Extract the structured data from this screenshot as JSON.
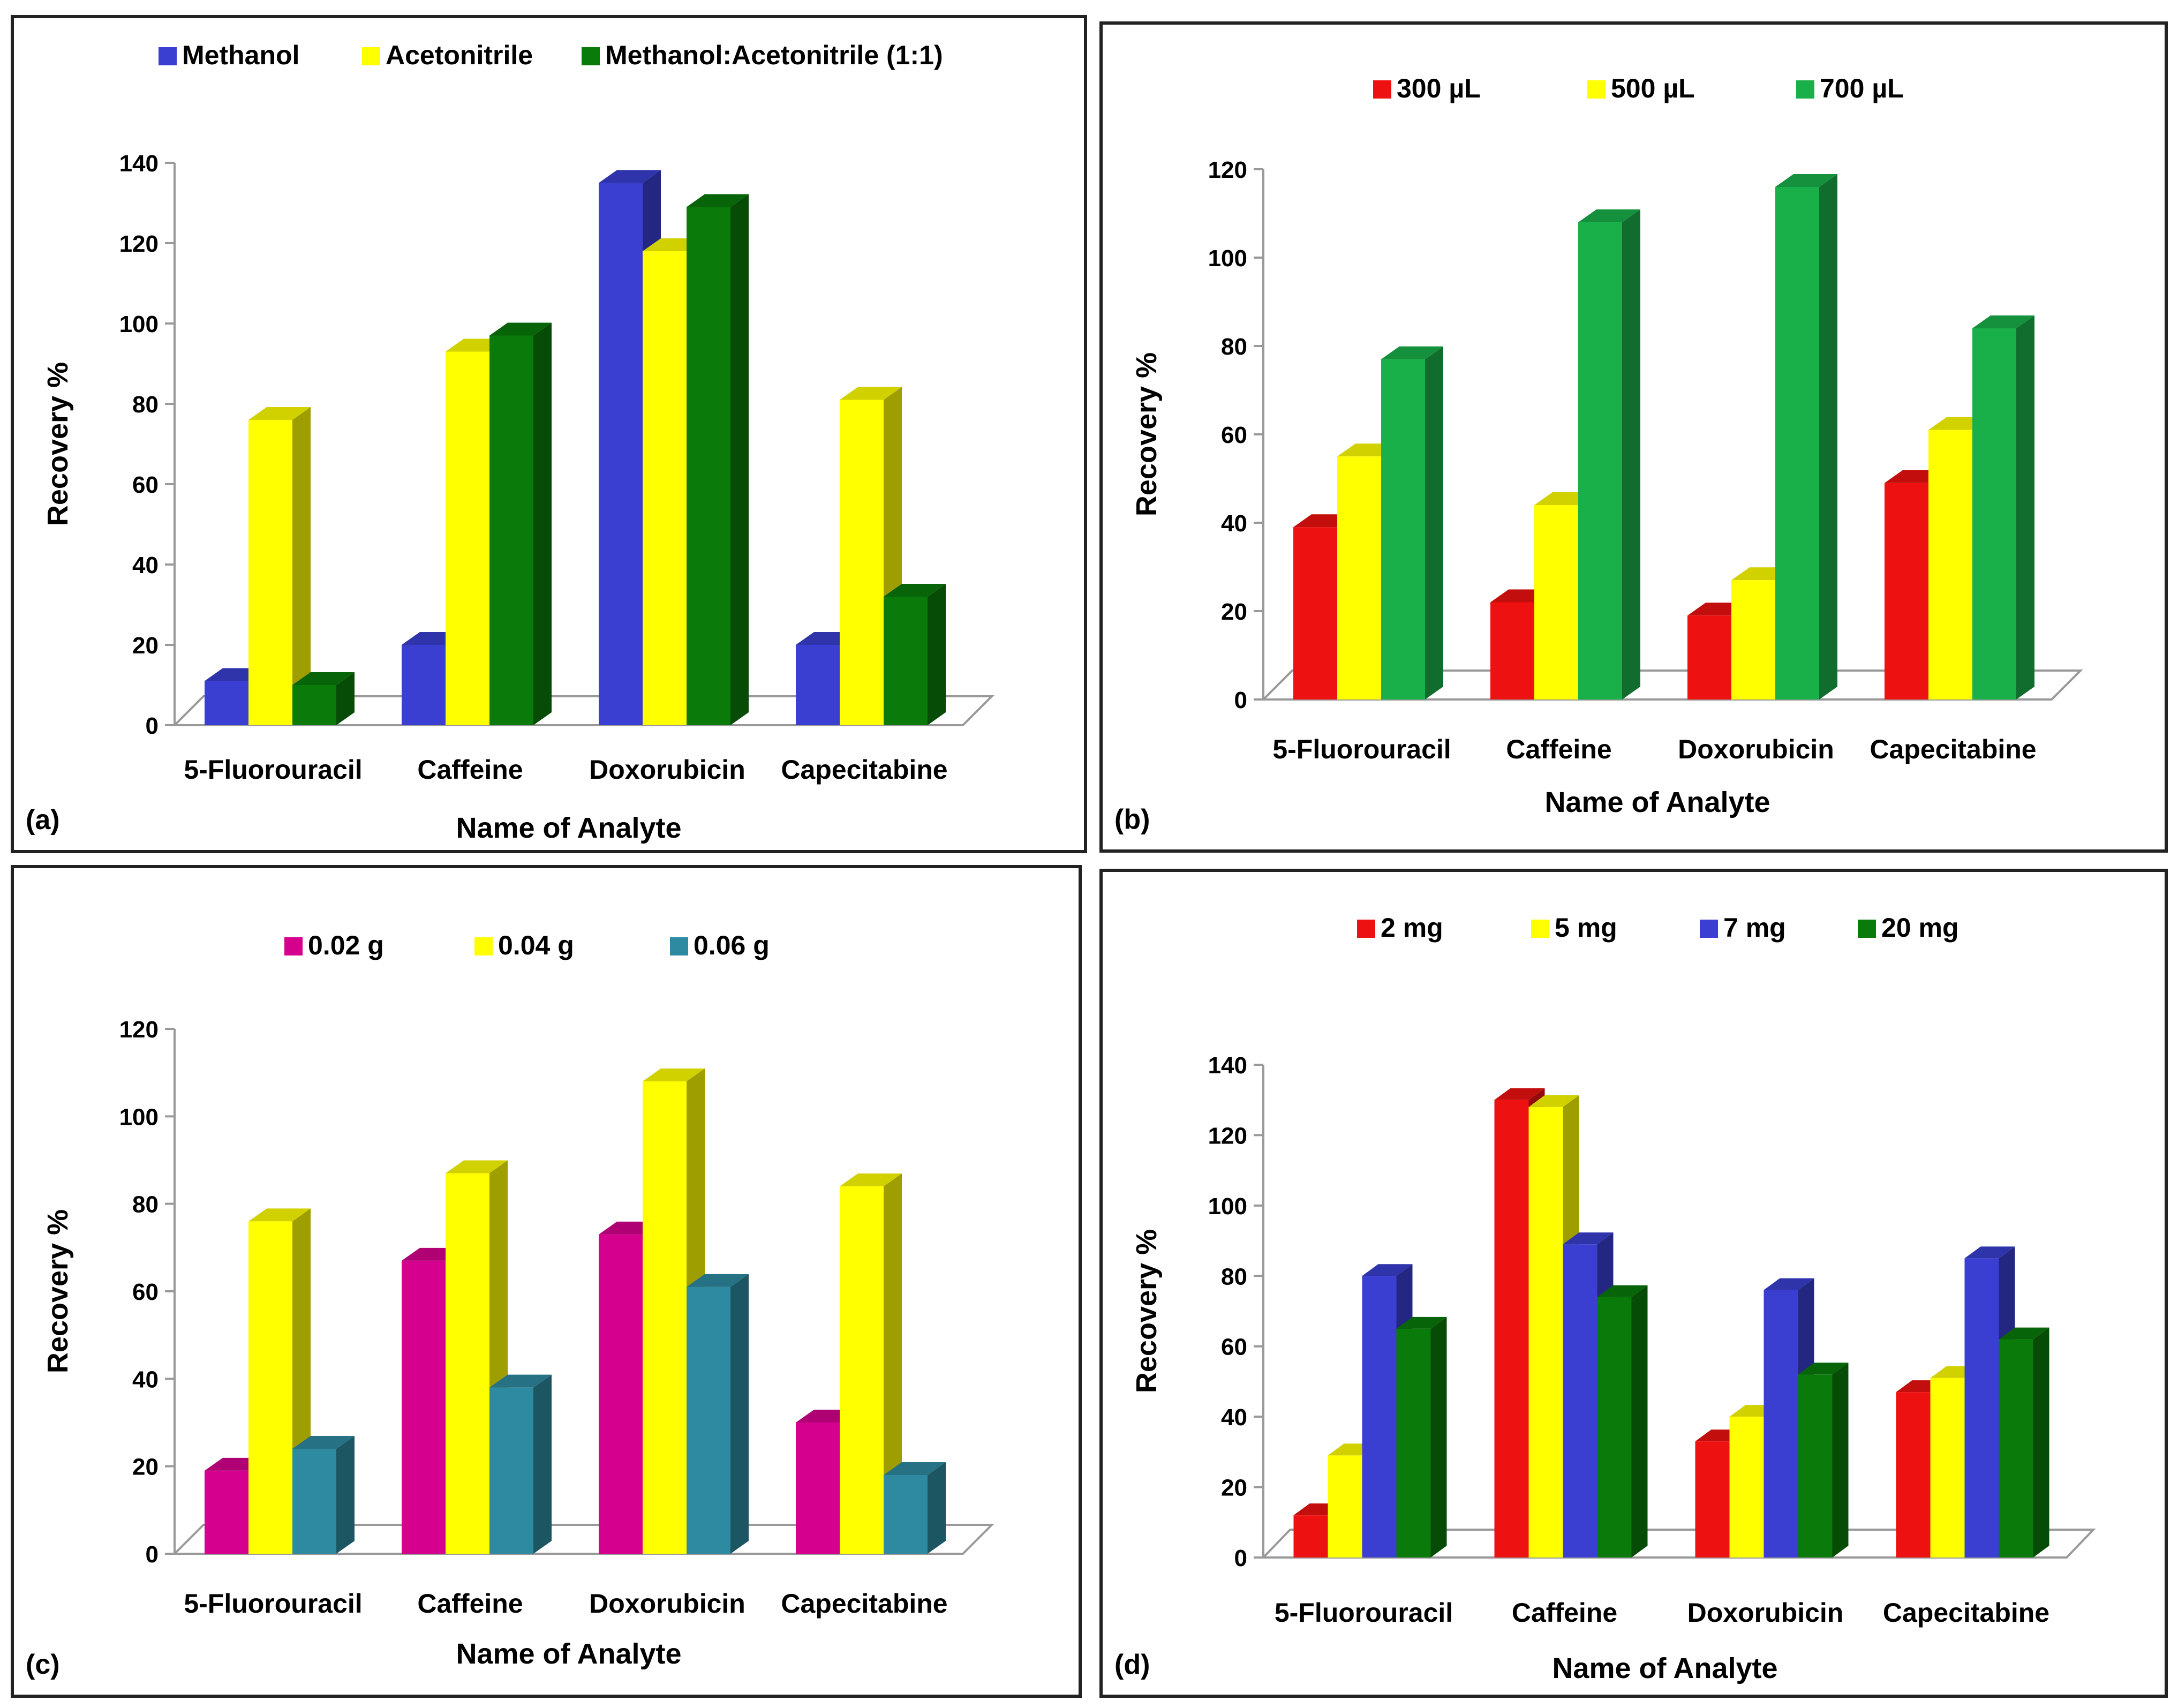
{
  "chart_data": [
    {
      "type": "bar",
      "panel": "(a)",
      "categories": [
        "5-Fluorouracil",
        "Caffeine",
        "Doxorubicin",
        "Capecitabine"
      ],
      "series": [
        {
          "name": "Methanol",
          "color": "#3a3fd1",
          "values": [
            11,
            20,
            135,
            20
          ]
        },
        {
          "name": "Acetonitrile",
          "color": "#ffff00",
          "values": [
            76,
            93,
            118,
            81
          ]
        },
        {
          "name": "Methanol:Acetonitrile (1:1)",
          "color": "#0a7a0a",
          "values": [
            10,
            97,
            129,
            32
          ]
        }
      ],
      "xlabel": "Name of Analyte",
      "ylabel": "Recovery %",
      "ylim": [
        0,
        140
      ],
      "yticks": [
        0,
        20,
        40,
        60,
        80,
        100,
        120,
        140
      ]
    },
    {
      "type": "bar",
      "panel": "(b)",
      "categories": [
        "5-Fluorouracil",
        "Caffeine",
        "Doxorubicin",
        "Capecitabine"
      ],
      "series": [
        {
          "name": "300 µL",
          "color": "#ee1111",
          "values": [
            39,
            22,
            19,
            49
          ]
        },
        {
          "name": "500 µL",
          "color": "#ffff00",
          "values": [
            55,
            44,
            27,
            61
          ]
        },
        {
          "name": "700 µL",
          "color": "#19b04a",
          "values": [
            77,
            108,
            116,
            84
          ]
        }
      ],
      "xlabel": "Name of Analyte",
      "ylabel": "Recovery %",
      "ylim": [
        0,
        120
      ],
      "yticks": [
        0,
        20,
        40,
        60,
        80,
        100,
        120
      ]
    },
    {
      "type": "bar",
      "panel": "(c)",
      "categories": [
        "5-Fluorouracil",
        "Caffeine",
        "Doxorubicin",
        "Capecitabine"
      ],
      "series": [
        {
          "name": "0.02 g",
          "color": "#d6008e",
          "values": [
            19,
            67,
            73,
            30
          ]
        },
        {
          "name": "0.04 g",
          "color": "#ffff00",
          "values": [
            76,
            87,
            108,
            84
          ]
        },
        {
          "name": "0.06 g",
          "color": "#2e8aa0",
          "values": [
            24,
            38,
            61,
            18
          ]
        }
      ],
      "xlabel": "Name of Analyte",
      "ylabel": "Recovery %",
      "ylim": [
        0,
        120
      ],
      "yticks": [
        0,
        20,
        40,
        60,
        80,
        100,
        120
      ]
    },
    {
      "type": "bar",
      "panel": "(d)",
      "categories": [
        "5-Fluorouracil",
        "Caffeine",
        "Doxorubicin",
        "Capecitabine"
      ],
      "series": [
        {
          "name": "2 mg",
          "color": "#ee1111",
          "values": [
            12,
            130,
            33,
            47
          ]
        },
        {
          "name": "5 mg",
          "color": "#ffff00",
          "values": [
            29,
            128,
            40,
            51
          ]
        },
        {
          "name": "7 mg",
          "color": "#3a3fd1",
          "values": [
            80,
            89,
            76,
            85
          ]
        },
        {
          "name": "20 mg",
          "color": "#0a7a0a",
          "values": [
            65,
            74,
            52,
            62
          ]
        }
      ],
      "xlabel": "Name of Analyte",
      "ylabel": "Recovery %",
      "ylim": [
        0,
        140
      ],
      "yticks": [
        0,
        20,
        40,
        60,
        80,
        100,
        120,
        140
      ]
    }
  ]
}
